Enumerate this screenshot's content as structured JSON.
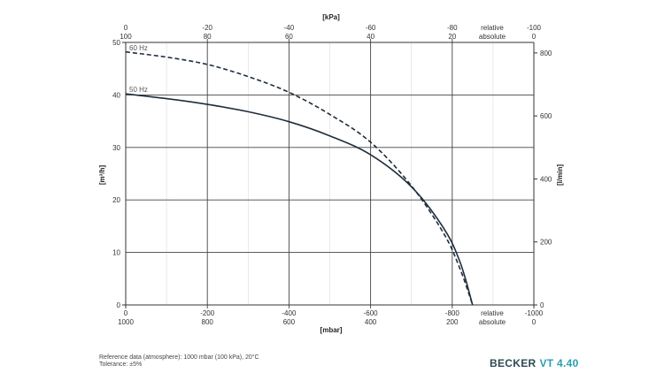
{
  "chart_data": {
    "type": "line",
    "x_axis_bottom": {
      "label": "[mbar]",
      "range": [
        0,
        -1000
      ],
      "ticks_relative": [
        "0",
        "-200",
        "-400",
        "-600",
        "-800",
        "-1000"
      ],
      "ticks_absolute": [
        "1000",
        "800",
        "600",
        "400",
        "200",
        "0"
      ],
      "end_label_relative": "relative",
      "end_label_absolute": "absolute"
    },
    "x_axis_top": {
      "label": "[kPa]",
      "ticks_relative": [
        "0",
        "-20",
        "-40",
        "-60",
        "-80",
        "-100"
      ],
      "ticks_absolute": [
        "100",
        "80",
        "60",
        "40",
        "20",
        "0"
      ],
      "end_label_relative": "relative",
      "end_label_absolute": "absolute"
    },
    "y_axis_left": {
      "label": "[m³/h]",
      "range": [
        0,
        50
      ],
      "ticks": [
        "0",
        "10",
        "20",
        "30",
        "40",
        "50"
      ]
    },
    "y_axis_right": {
      "label": "[l/min]",
      "ticks": [
        "0",
        "200",
        "400",
        "600",
        "800"
      ],
      "tick_values": [
        0,
        200,
        400,
        600,
        800
      ]
    },
    "grid": true,
    "series": [
      {
        "name": "50 Hz",
        "style": "solid",
        "color": "#1f2d3d",
        "x": [
          0,
          -100,
          -200,
          -300,
          -400,
          -500,
          -600,
          -700,
          -780,
          -820,
          -850
        ],
        "y": [
          40.2,
          39.3,
          38.2,
          36.8,
          34.9,
          32.2,
          28.6,
          22.5,
          14.5,
          8.0,
          0
        ]
      },
      {
        "name": "60 Hz",
        "style": "dashed",
        "color": "#1f2d3d",
        "x": [
          0,
          -100,
          -200,
          -300,
          -400,
          -500,
          -600,
          -700,
          -780,
          -820,
          -850
        ],
        "y": [
          48.2,
          47.2,
          45.8,
          43.5,
          40.5,
          36.3,
          31.0,
          22.7,
          13.5,
          6.7,
          0
        ]
      }
    ]
  },
  "footnote": {
    "reference": "Reference data (atmosphere): 1000 mbar (100 kPa), 20°C",
    "tolerance": "Tolerance: ±5%"
  },
  "brand": {
    "name": "BECKER",
    "model": "VT 4.40",
    "color": "#2e4a55",
    "model_color": "#2a9fb0"
  }
}
